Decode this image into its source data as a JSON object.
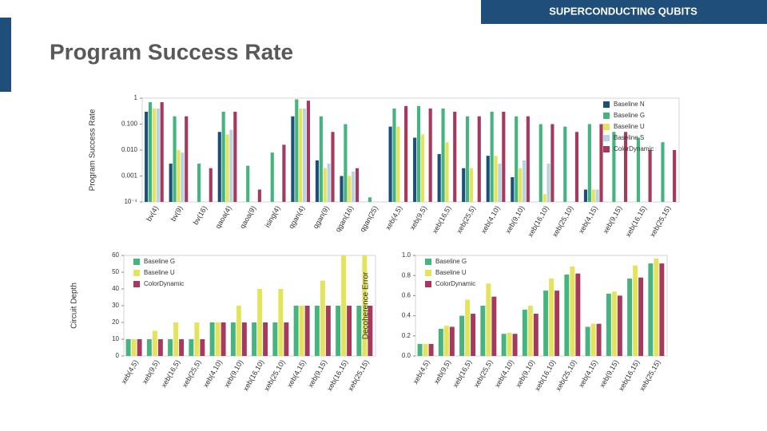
{
  "header": {
    "tag": "SUPERCONDUCTING QUBITS",
    "title": "Program Success Rate"
  },
  "chart_data": [
    {
      "type": "bar",
      "ylabel": "Program Success Rate",
      "log_scale": true,
      "legend": "upper right",
      "categories": [
        "bv(4)",
        "bv(9)",
        "bv(16)",
        "qaoa(4)",
        "qaoa(9)",
        "ising(4)",
        "qgan(4)",
        "qgan(9)",
        "qgan(16)",
        "qgan(25)",
        "xeb(4,5)",
        "xeb(9,5)",
        "xeb(16,5)",
        "xeb(25,5)",
        "xeb(4,10)",
        "xeb(9,10)",
        "xeb(16,10)",
        "xeb(25,10)",
        "xeb(4,15)",
        "xeb(9,15)",
        "xeb(16,15)",
        "xeb(25,15)"
      ],
      "ylim": [
        0.0001,
        1
      ],
      "yticks": [
        {
          "value": 0.0001,
          "label": "10⁻⁴"
        },
        {
          "value": 0.001,
          "label": "0.001"
        },
        {
          "value": 0.01,
          "label": "0.010"
        },
        {
          "value": 0.1,
          "label": "0.100"
        },
        1
      ],
      "series": [
        {
          "name": "Baseline N",
          "color": "#1d4f7c",
          "values": [
            0.3,
            0.003,
            null,
            0.05,
            null,
            null,
            0.2,
            0.004,
            0.001,
            null,
            0.08,
            0.03,
            0.007,
            0.002,
            0.006,
            0.0009,
            null,
            null,
            0.0003,
            null,
            null,
            null
          ]
        },
        {
          "name": "Baseline G",
          "color": "#45b47f",
          "values": [
            0.7,
            0.2,
            0.003,
            0.3,
            0.0025,
            0.008,
            0.9,
            0.2,
            0.1,
            0.00015,
            0.4,
            0.5,
            0.4,
            0.2,
            0.3,
            0.2,
            0.1,
            0.08,
            0.1,
            0.05,
            0.03,
            0.02
          ]
        },
        {
          "name": "Baseline U",
          "color": "#e4e35c",
          "values": [
            0.4,
            0.01,
            null,
            0.04,
            null,
            null,
            0.4,
            0.002,
            0.001,
            null,
            0.08,
            0.04,
            0.02,
            0.002,
            0.006,
            0.002,
            0.0002,
            null,
            0.0003,
            null,
            null,
            null
          ]
        },
        {
          "name": "Baseline S",
          "color": "#b8d4e2",
          "values": [
            0.4,
            0.008,
            null,
            0.06,
            null,
            null,
            0.4,
            0.003,
            0.0015,
            null,
            null,
            null,
            null,
            null,
            0.003,
            0.004,
            0.003,
            null,
            0.0003,
            null,
            null,
            null
          ]
        },
        {
          "name": "ColorDynamic",
          "color": "#a63a5d",
          "values": [
            0.7,
            0.2,
            0.002,
            0.3,
            0.0003,
            0.016,
            0.8,
            0.05,
            0.002,
            null,
            0.5,
            0.4,
            0.3,
            0.2,
            0.3,
            0.2,
            0.1,
            0.05,
            0.1,
            0.05,
            0.01,
            0.01
          ]
        }
      ]
    },
    {
      "type": "bar",
      "ylabel": "Circuit Depth",
      "legend": "upper left",
      "categories": [
        "xeb(4,5)",
        "xeb(9,5)",
        "xeb(16,5)",
        "xeb(25,5)",
        "xeb(4,10)",
        "xeb(9,10)",
        "xeb(16,10)",
        "xeb(25,10)",
        "xeb(4,15)",
        "xeb(9,15)",
        "xeb(16,15)",
        "xeb(25,15)"
      ],
      "ylim": [
        0,
        60
      ],
      "yticks": [
        0,
        10,
        20,
        30,
        40,
        50,
        60
      ],
      "series": [
        {
          "name": "Baseline G",
          "color": "#45b47f",
          "values": [
            10,
            10,
            10,
            10,
            20,
            20,
            20,
            20,
            30,
            30,
            30,
            30
          ]
        },
        {
          "name": "Baseline U",
          "color": "#e4e35c",
          "values": [
            10,
            15,
            20,
            20,
            20,
            30,
            40,
            40,
            30,
            45,
            60,
            60
          ]
        },
        {
          "name": "ColorDynamic",
          "color": "#a63a5d",
          "values": [
            10,
            10,
            10,
            10,
            20,
            20,
            20,
            20,
            30,
            30,
            30,
            30
          ]
        }
      ]
    },
    {
      "type": "bar",
      "ylabel": "Decoherence Error",
      "legend": "upper left",
      "categories": [
        "xeb(4,5)",
        "xeb(9,5)",
        "xeb(16,5)",
        "xeb(25,5)",
        "xeb(4,10)",
        "xeb(9,10)",
        "xeb(16,10)",
        "xeb(25,10)",
        "xeb(4,15)",
        "xeb(9,15)",
        "xeb(16,15)",
        "xeb(25,15)"
      ],
      "ylim": [
        0,
        1
      ],
      "yticks": [
        {
          "value": 0,
          "label": "0.0"
        },
        0.2,
        0.4,
        0.6,
        0.8,
        {
          "value": 1,
          "label": "1.0"
        }
      ],
      "series": [
        {
          "name": "Baseline G",
          "color": "#45b47f",
          "values": [
            0.12,
            0.27,
            0.4,
            0.5,
            0.22,
            0.46,
            0.65,
            0.81,
            0.29,
            0.62,
            0.77,
            0.92
          ]
        },
        {
          "name": "Baseline U",
          "color": "#e4e35c",
          "values": [
            0.12,
            0.3,
            0.56,
            0.72,
            0.23,
            0.5,
            0.77,
            0.89,
            0.32,
            0.64,
            0.9,
            0.97
          ]
        },
        {
          "name": "ColorDynamic",
          "color": "#a63a5d",
          "values": [
            0.12,
            0.29,
            0.42,
            0.59,
            0.22,
            0.42,
            0.65,
            0.82,
            0.32,
            0.6,
            0.78,
            0.92
          ]
        }
      ]
    }
  ]
}
